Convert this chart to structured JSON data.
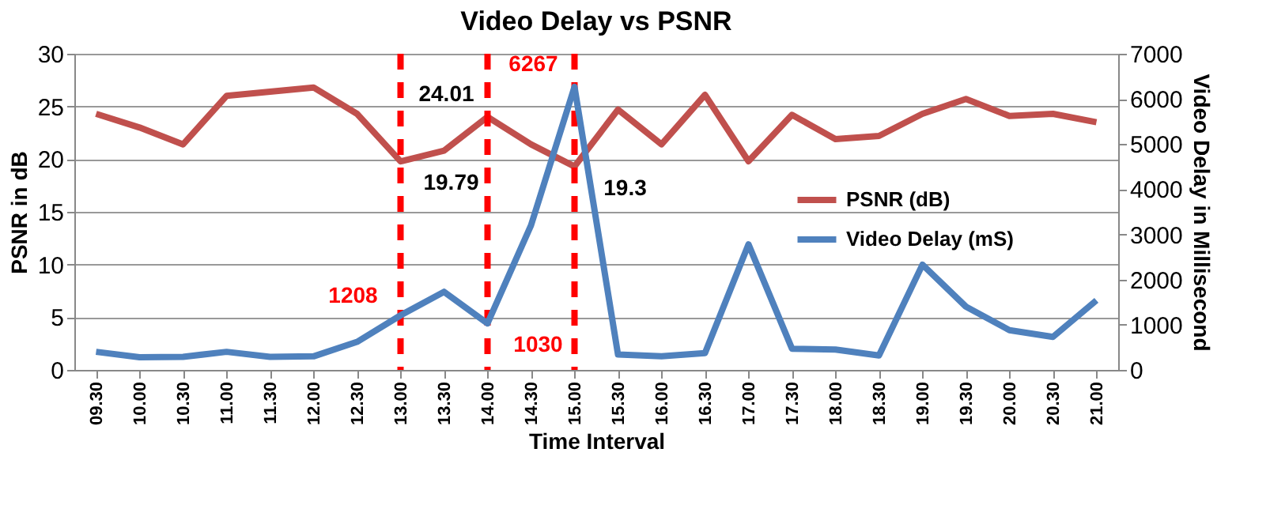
{
  "chart_data": {
    "type": "line",
    "title": "Video Delay vs PSNR",
    "xlabel": "Time Interval",
    "ylabel": "PSNR in dB",
    "y2label": "Video Delay in Millisecond",
    "categories": [
      "09.30",
      "10.00",
      "10.30",
      "11.00",
      "11.30",
      "12.00",
      "12.30",
      "13.00",
      "13.30",
      "14.00",
      "14.30",
      "15.00",
      "15.30",
      "16.00",
      "16.30",
      "17.00",
      "17.30",
      "18.00",
      "18.30",
      "19.00",
      "19.30",
      "20.00",
      "20.30",
      "21.00"
    ],
    "series": [
      {
        "name": "PSNR (dB)",
        "color": "#c0504d",
        "values": [
          24.3,
          23,
          21.4,
          26,
          26.4,
          26.8,
          24.3,
          19.79,
          20.8,
          24.01,
          21.4,
          19.3,
          24.7,
          21.4,
          26.1,
          19.8,
          24.2,
          21.9,
          22.2,
          24.3,
          25.7,
          24.1,
          24.3,
          23.5
        ],
        "value_labels": [
          null,
          null,
          null,
          null,
          null,
          null,
          null,
          "19.79",
          null,
          "24.01",
          null,
          "19.3",
          null,
          null,
          null,
          null,
          null,
          null,
          null,
          null,
          null,
          null,
          null,
          null
        ]
      },
      {
        "name": "Video Delay (mS)",
        "color": "#4f81bd",
        "axis": "y2",
        "values": [
          400,
          280,
          290,
          400,
          290,
          300,
          620,
          1208,
          1730,
          1030,
          3200,
          6267,
          340,
          300,
          370,
          2780,
          470,
          450,
          320,
          2330,
          1400,
          880,
          730,
          1540
        ],
        "value_labels": [
          null,
          null,
          null,
          null,
          null,
          null,
          null,
          "1208",
          null,
          "1030",
          null,
          "6267",
          null,
          null,
          null,
          null,
          null,
          null,
          null,
          null,
          null,
          null,
          null,
          null
        ]
      }
    ],
    "ylim": [
      0,
      30
    ],
    "yticks": [
      0,
      5,
      10,
      15,
      20,
      25,
      30
    ],
    "y2lim": [
      0,
      7000
    ],
    "y2ticks": [
      0,
      1000,
      2000,
      3000,
      4000,
      5000,
      6000,
      7000
    ],
    "ref_lines": [
      {
        "axis": "x",
        "value": "13.00",
        "color": "#ff0000",
        "line_style": "dashed"
      },
      {
        "axis": "x",
        "value": "14.00",
        "color": "#ff0000",
        "line_style": "dashed"
      },
      {
        "axis": "x",
        "value": "15.00",
        "color": "#ff0000",
        "line_style": "dashed"
      }
    ],
    "grid": "y",
    "legend": "right",
    "marker": "none",
    "line_style": "solid"
  }
}
